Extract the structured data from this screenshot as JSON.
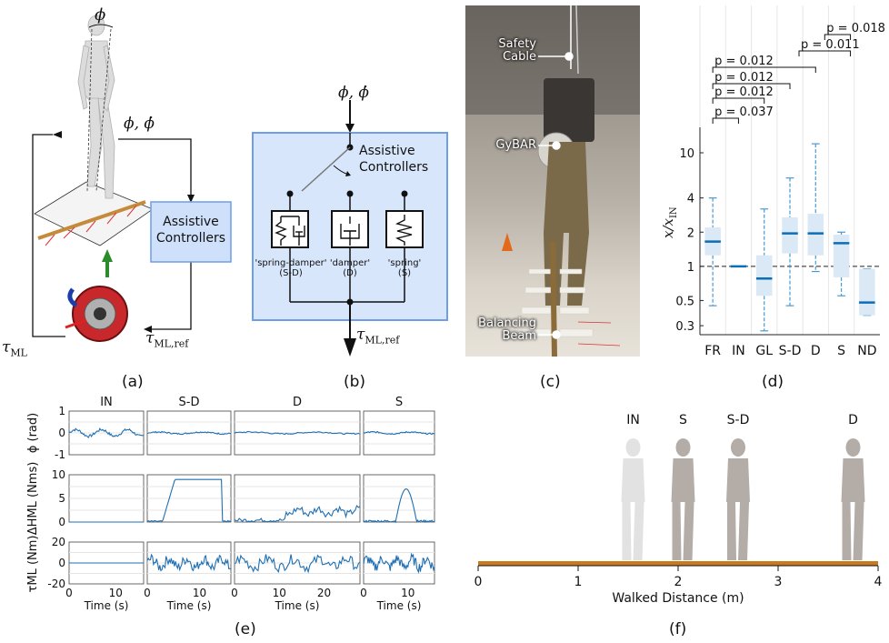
{
  "panel_a": {
    "caption": "(a)",
    "phi_label": "ϕ",
    "state_label": "ϕ, ϕ̇",
    "controller_box": [
      "Assistive",
      "Controllers"
    ],
    "tau_label": "τ",
    "tau_sub": "ML",
    "tau_ref_label": "τ",
    "tau_ref_sub": "ML,ref",
    "colors": {
      "box_fill": "#cfe0fb",
      "box_stroke": "#6f9de6",
      "beam": "#c58a3a"
    }
  },
  "panel_b": {
    "caption": "(b)",
    "input_label": "ϕ, ϕ̇",
    "controller_label": [
      "Assistive",
      "Controllers"
    ],
    "elements": [
      {
        "label": "'spring-damper'",
        "abbr": "(S-D)"
      },
      {
        "label": "'damper'",
        "abbr": "(D)"
      },
      {
        "label": "'spring'",
        "abbr": "(S)"
      }
    ],
    "output_label": "τ",
    "output_sub": "ML,ref",
    "colors": {
      "box_fill": "#d8e6fb",
      "box_stroke": "#6f9de6"
    }
  },
  "panel_c": {
    "caption": "(c)",
    "callouts": [
      "Safety Cable",
      "GyBAR",
      "Balancing Beam"
    ],
    "callout_lines": [
      [
        "Safety",
        "Cable"
      ],
      [
        "GyBAR"
      ],
      [
        "Balancing",
        "Beam"
      ]
    ]
  },
  "panel_d": {
    "caption": "(d)",
    "ylabel": "x/x",
    "ylabel_sub": "IN",
    "significance": [
      {
        "label": "p = 0.037",
        "from": "FR",
        "to": "IN"
      },
      {
        "label": "p = 0.012",
        "from": "FR",
        "to": "D"
      },
      {
        "label": "p = 0.012",
        "from": "FR",
        "to": "S-D"
      },
      {
        "label": "p = 0.012",
        "from": "FR",
        "to": "D"
      },
      {
        "label": "p = 0.011",
        "from": "D",
        "to": "S"
      },
      {
        "label": "p = 0.018",
        "from": "D",
        "to": "S"
      }
    ]
  },
  "chart_data": {
    "type": "box",
    "categories": [
      "FR",
      "IN",
      "GL",
      "S-D",
      "D",
      "S",
      "ND"
    ],
    "yscale": "log",
    "ylim": [
      0.25,
      15
    ],
    "yticks": [
      0.3,
      0.5,
      1,
      2,
      4,
      10
    ],
    "ytick_labels": [
      "0.3",
      "0.5",
      "1",
      "2",
      "4",
      "10"
    ],
    "reference_line": 1,
    "boxes": [
      {
        "cat": "FR",
        "min": 0.45,
        "q1": 1.25,
        "median": 1.65,
        "q3": 2.2,
        "max": 4.0
      },
      {
        "cat": "IN",
        "min": 1.0,
        "q1": 1.0,
        "median": 1.0,
        "q3": 1.0,
        "max": 1.0
      },
      {
        "cat": "GL",
        "min": 0.27,
        "q1": 0.55,
        "median": 0.78,
        "q3": 1.25,
        "max": 3.2
      },
      {
        "cat": "S-D",
        "min": 0.45,
        "q1": 1.3,
        "median": 1.95,
        "q3": 2.7,
        "max": 6.0
      },
      {
        "cat": "D",
        "min": 0.9,
        "q1": 1.25,
        "median": 1.95,
        "q3": 2.9,
        "max": 12.0
      },
      {
        "cat": "S",
        "min": 0.55,
        "q1": 0.8,
        "median": 1.6,
        "q3": 1.9,
        "max": 2.0
      },
      {
        "cat": "ND",
        "min": 0.37,
        "q1": 0.37,
        "median": 0.48,
        "q3": 0.95,
        "max": 0.95
      }
    ],
    "colors": {
      "box_fill": "#dbe9f6",
      "median": "#0a6fb6",
      "whisker": "#4a9ad0",
      "grid": "#e6e6e6"
    }
  },
  "panel_e": {
    "caption": "(e)",
    "columns": [
      "IN",
      "S-D",
      "D",
      "S"
    ],
    "row_labels": [
      {
        "sym": "ϕ",
        "unit": "(rad)"
      },
      {
        "sym": "ΔH",
        "sub": "ML",
        "unit": "(Nms)"
      },
      {
        "sym": "τ",
        "sub": "ML",
        "unit": "(Nm)"
      }
    ],
    "row_ticks": [
      [
        "1",
        "0",
        "-1"
      ],
      [
        "10",
        "5",
        "0"
      ],
      [
        "20",
        "0",
        "-20"
      ]
    ],
    "x_ticks": [
      [
        "0",
        "10"
      ],
      [
        "0",
        "10"
      ],
      [
        "0",
        "10",
        "20"
      ],
      [
        "0",
        "10"
      ]
    ],
    "xlabel": "Time (s)",
    "line_color": "#1f6fb2"
  },
  "panel_f": {
    "caption": "(f)",
    "conditions": [
      "IN",
      "S",
      "S-D",
      "D"
    ],
    "ticks": [
      "0",
      "1",
      "2",
      "3",
      "4"
    ],
    "xlabel": "Walked Distance (m)",
    "beam_color": "#c87a1e"
  }
}
